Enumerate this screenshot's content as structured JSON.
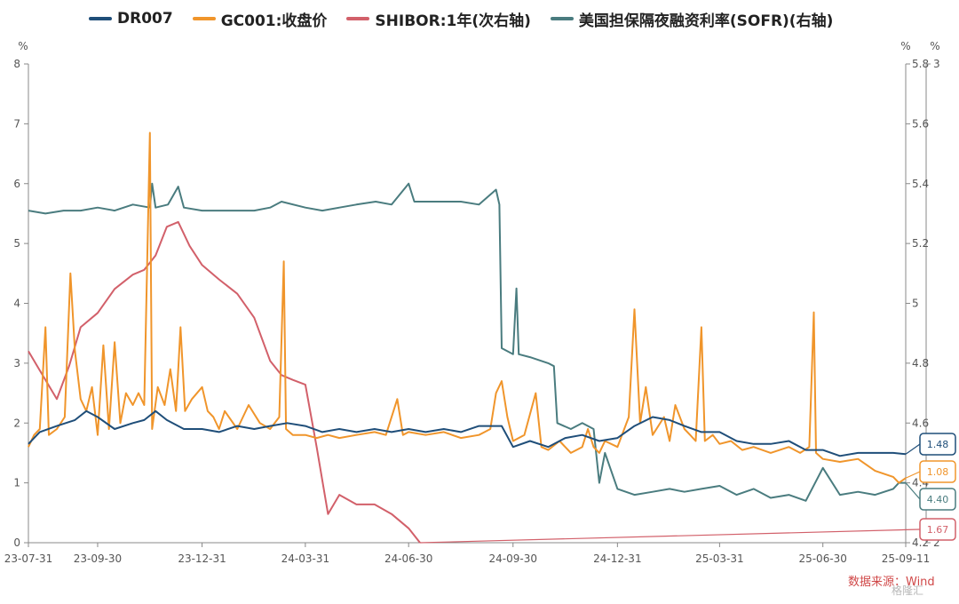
{
  "legend": {
    "items": [
      {
        "label": "DR007",
        "color": "#1f4e79"
      },
      {
        "label": "GC001:收盘价",
        "color": "#f0952b"
      },
      {
        "label": "SHIBOR:1年(次右轴)",
        "color": "#d2606a"
      },
      {
        "label": "美国担保隔夜融资利率(SOFR)(右轴)",
        "color": "#4a7c7f"
      }
    ]
  },
  "axis_units": {
    "left": "%",
    "right": "%",
    "right2": "%"
  },
  "source": "数据来源：Wind",
  "watermark": "格隆汇",
  "chart_data": {
    "type": "line",
    "x_ticks": [
      "23-07-31",
      "23-09-30",
      "23-12-31",
      "24-03-31",
      "24-06-30",
      "24-09-30",
      "24-12-31",
      "25-03-31",
      "25-06-30",
      "25-09-11"
    ],
    "y_left": {
      "min": 0,
      "max": 8,
      "ticks": [
        0,
        1,
        2,
        3,
        4,
        5,
        6,
        7,
        8
      ]
    },
    "y_right": {
      "min": 4.2,
      "max": 5.8,
      "ticks": [
        4.2,
        4.4,
        4.6,
        4.8,
        5,
        5.2,
        5.4,
        5.6,
        5.8
      ]
    },
    "y_right2": {
      "min": 2,
      "max": 3,
      "ticks": [
        2,
        3
      ]
    },
    "series": [
      {
        "name": "DR007",
        "axis": "left",
        "color": "#1f4e79",
        "points": [
          [
            "2023-07-31",
            1.65
          ],
          [
            "2023-08-10",
            1.85
          ],
          [
            "2023-08-25",
            1.95
          ],
          [
            "2023-09-10",
            2.05
          ],
          [
            "2023-09-20",
            2.2
          ],
          [
            "2023-09-30",
            2.1
          ],
          [
            "2023-10-15",
            1.9
          ],
          [
            "2023-10-31",
            2.0
          ],
          [
            "2023-11-10",
            2.05
          ],
          [
            "2023-11-20",
            2.2
          ],
          [
            "2023-11-30",
            2.05
          ],
          [
            "2023-12-15",
            1.9
          ],
          [
            "2023-12-31",
            1.9
          ],
          [
            "2024-01-15",
            1.85
          ],
          [
            "2024-01-31",
            1.95
          ],
          [
            "2024-02-15",
            1.9
          ],
          [
            "2024-02-29",
            1.95
          ],
          [
            "2024-03-15",
            2.0
          ],
          [
            "2024-03-31",
            1.95
          ],
          [
            "2024-04-15",
            1.85
          ],
          [
            "2024-04-30",
            1.9
          ],
          [
            "2024-05-15",
            1.85
          ],
          [
            "2024-05-31",
            1.9
          ],
          [
            "2024-06-15",
            1.85
          ],
          [
            "2024-06-30",
            1.9
          ],
          [
            "2024-07-15",
            1.85
          ],
          [
            "2024-07-31",
            1.9
          ],
          [
            "2024-08-15",
            1.85
          ],
          [
            "2024-08-31",
            1.95
          ],
          [
            "2024-09-20",
            1.95
          ],
          [
            "2024-09-30",
            1.6
          ],
          [
            "2024-10-15",
            1.7
          ],
          [
            "2024-10-31",
            1.6
          ],
          [
            "2024-11-15",
            1.75
          ],
          [
            "2024-11-30",
            1.8
          ],
          [
            "2024-12-15",
            1.7
          ],
          [
            "2024-12-31",
            1.75
          ],
          [
            "2025-01-15",
            1.95
          ],
          [
            "2025-01-31",
            2.1
          ],
          [
            "2025-02-15",
            2.05
          ],
          [
            "2025-02-28",
            1.95
          ],
          [
            "2025-03-15",
            1.85
          ],
          [
            "2025-03-31",
            1.85
          ],
          [
            "2025-04-15",
            1.7
          ],
          [
            "2025-04-30",
            1.65
          ],
          [
            "2025-05-15",
            1.65
          ],
          [
            "2025-05-31",
            1.7
          ],
          [
            "2025-06-15",
            1.55
          ],
          [
            "2025-06-30",
            1.55
          ],
          [
            "2025-07-15",
            1.45
          ],
          [
            "2025-07-31",
            1.5
          ],
          [
            "2025-08-15",
            1.5
          ],
          [
            "2025-08-31",
            1.5
          ],
          [
            "2025-09-11",
            1.48
          ]
        ]
      },
      {
        "name": "GC001:收盘价",
        "axis": "left",
        "color": "#f0952b",
        "points": [
          [
            "2023-07-31",
            1.6
          ],
          [
            "2023-08-05",
            1.8
          ],
          [
            "2023-08-10",
            1.9
          ],
          [
            "2023-08-15",
            3.6
          ],
          [
            "2023-08-18",
            1.8
          ],
          [
            "2023-08-25",
            1.9
          ],
          [
            "2023-09-01",
            2.1
          ],
          [
            "2023-09-06",
            4.5
          ],
          [
            "2023-09-10",
            3.2
          ],
          [
            "2023-09-15",
            2.4
          ],
          [
            "2023-09-20",
            2.2
          ],
          [
            "2023-09-25",
            2.6
          ],
          [
            "2023-09-30",
            1.8
          ],
          [
            "2023-10-05",
            3.3
          ],
          [
            "2023-10-10",
            1.9
          ],
          [
            "2023-10-15",
            3.35
          ],
          [
            "2023-10-20",
            2.0
          ],
          [
            "2023-10-25",
            2.5
          ],
          [
            "2023-10-31",
            2.3
          ],
          [
            "2023-11-05",
            2.5
          ],
          [
            "2023-11-10",
            2.3
          ],
          [
            "2023-11-15",
            6.85
          ],
          [
            "2023-11-17",
            1.9
          ],
          [
            "2023-11-22",
            2.6
          ],
          [
            "2023-11-28",
            2.3
          ],
          [
            "2023-12-03",
            2.9
          ],
          [
            "2023-12-08",
            2.2
          ],
          [
            "2023-12-12",
            3.6
          ],
          [
            "2023-12-16",
            2.2
          ],
          [
            "2023-12-22",
            2.4
          ],
          [
            "2023-12-31",
            2.6
          ],
          [
            "2024-01-05",
            2.2
          ],
          [
            "2024-01-10",
            2.1
          ],
          [
            "2024-01-15",
            1.9
          ],
          [
            "2024-01-20",
            2.2
          ],
          [
            "2024-01-31",
            1.9
          ],
          [
            "2024-02-10",
            2.3
          ],
          [
            "2024-02-20",
            2.0
          ],
          [
            "2024-02-29",
            1.9
          ],
          [
            "2024-03-08",
            2.1
          ],
          [
            "2024-03-12",
            4.7
          ],
          [
            "2024-03-14",
            1.9
          ],
          [
            "2024-03-20",
            1.8
          ],
          [
            "2024-03-31",
            1.8
          ],
          [
            "2024-04-10",
            1.75
          ],
          [
            "2024-04-20",
            1.8
          ],
          [
            "2024-04-30",
            1.75
          ],
          [
            "2024-05-15",
            1.8
          ],
          [
            "2024-05-31",
            1.85
          ],
          [
            "2024-06-10",
            1.8
          ],
          [
            "2024-06-20",
            2.4
          ],
          [
            "2024-06-25",
            1.8
          ],
          [
            "2024-06-30",
            1.85
          ],
          [
            "2024-07-15",
            1.8
          ],
          [
            "2024-07-31",
            1.85
          ],
          [
            "2024-08-15",
            1.75
          ],
          [
            "2024-08-31",
            1.8
          ],
          [
            "2024-09-05",
            1.85
          ],
          [
            "2024-09-10",
            1.9
          ],
          [
            "2024-09-15",
            2.5
          ],
          [
            "2024-09-20",
            2.7
          ],
          [
            "2024-09-25",
            2.1
          ],
          [
            "2024-09-30",
            1.7
          ],
          [
            "2024-10-10",
            1.8
          ],
          [
            "2024-10-20",
            2.5
          ],
          [
            "2024-10-25",
            1.6
          ],
          [
            "2024-10-31",
            1.55
          ],
          [
            "2024-11-10",
            1.7
          ],
          [
            "2024-11-20",
            1.5
          ],
          [
            "2024-11-30",
            1.6
          ],
          [
            "2024-12-05",
            1.9
          ],
          [
            "2024-12-10",
            1.6
          ],
          [
            "2024-12-15",
            1.5
          ],
          [
            "2024-12-20",
            1.7
          ],
          [
            "2024-12-31",
            1.6
          ],
          [
            "2025-01-10",
            2.1
          ],
          [
            "2025-01-15",
            3.9
          ],
          [
            "2025-01-20",
            2.0
          ],
          [
            "2025-01-25",
            2.6
          ],
          [
            "2025-01-31",
            1.8
          ],
          [
            "2025-02-10",
            2.1
          ],
          [
            "2025-02-15",
            1.7
          ],
          [
            "2025-02-20",
            2.3
          ],
          [
            "2025-02-28",
            1.9
          ],
          [
            "2025-03-05",
            1.8
          ],
          [
            "2025-03-10",
            1.7
          ],
          [
            "2025-03-15",
            3.6
          ],
          [
            "2025-03-18",
            1.7
          ],
          [
            "2025-03-25",
            1.8
          ],
          [
            "2025-03-31",
            1.65
          ],
          [
            "2025-04-10",
            1.7
          ],
          [
            "2025-04-20",
            1.55
          ],
          [
            "2025-04-30",
            1.6
          ],
          [
            "2025-05-15",
            1.5
          ],
          [
            "2025-05-31",
            1.6
          ],
          [
            "2025-06-10",
            1.5
          ],
          [
            "2025-06-18",
            1.6
          ],
          [
            "2025-06-22",
            3.85
          ],
          [
            "2025-06-24",
            1.5
          ],
          [
            "2025-06-30",
            1.4
          ],
          [
            "2025-07-15",
            1.35
          ],
          [
            "2025-07-31",
            1.4
          ],
          [
            "2025-08-15",
            1.2
          ],
          [
            "2025-08-31",
            1.1
          ],
          [
            "2025-09-05",
            1.0
          ],
          [
            "2025-09-11",
            1.08
          ]
        ]
      },
      {
        "name": "SHIBOR:1年(次右轴)",
        "axis": "right2",
        "color": "#d2606a",
        "points": [
          [
            "2023-07-31",
            2.4
          ],
          [
            "2023-08-10",
            2.36
          ],
          [
            "2023-08-25",
            2.3
          ],
          [
            "2023-09-05",
            2.37
          ],
          [
            "2023-09-15",
            2.45
          ],
          [
            "2023-09-30",
            2.48
          ],
          [
            "2023-10-15",
            2.53
          ],
          [
            "2023-10-31",
            2.56
          ],
          [
            "2023-11-10",
            2.57
          ],
          [
            "2023-11-20",
            2.6
          ],
          [
            "2023-11-30",
            2.66
          ],
          [
            "2023-12-10",
            2.67
          ],
          [
            "2023-12-20",
            2.62
          ],
          [
            "2023-12-31",
            2.58
          ],
          [
            "2024-01-15",
            2.55
          ],
          [
            "2024-01-31",
            2.52
          ],
          [
            "2024-02-15",
            2.47
          ],
          [
            "2024-02-29",
            2.38
          ],
          [
            "2024-03-10",
            2.35
          ],
          [
            "2024-03-20",
            2.34
          ],
          [
            "2024-03-31",
            2.33
          ],
          [
            "2024-04-10",
            2.2
          ],
          [
            "2024-04-20",
            2.06
          ],
          [
            "2024-04-30",
            2.1
          ],
          [
            "2024-05-15",
            2.08
          ],
          [
            "2024-05-31",
            2.08
          ],
          [
            "2024-06-15",
            2.06
          ],
          [
            "2024-06-30",
            2.03
          ],
          [
            "2024-07-10",
            2.0
          ]
        ]
      },
      {
        "name": "美国担保隔夜融资利率(SOFR)(右轴)",
        "axis": "right",
        "color": "#4a7c7f",
        "points": [
          [
            "2023-07-31",
            5.31
          ],
          [
            "2023-08-15",
            5.3
          ],
          [
            "2023-08-31",
            5.31
          ],
          [
            "2023-09-15",
            5.31
          ],
          [
            "2023-09-30",
            5.32
          ],
          [
            "2023-10-15",
            5.31
          ],
          [
            "2023-10-31",
            5.33
          ],
          [
            "2023-11-15",
            5.32
          ],
          [
            "2023-11-17",
            5.4
          ],
          [
            "2023-11-20",
            5.32
          ],
          [
            "2023-12-01",
            5.33
          ],
          [
            "2023-12-10",
            5.39
          ],
          [
            "2023-12-15",
            5.32
          ],
          [
            "2023-12-31",
            5.31
          ],
          [
            "2024-01-15",
            5.31
          ],
          [
            "2024-01-31",
            5.31
          ],
          [
            "2024-02-15",
            5.31
          ],
          [
            "2024-02-29",
            5.32
          ],
          [
            "2024-03-10",
            5.34
          ],
          [
            "2024-03-31",
            5.32
          ],
          [
            "2024-04-15",
            5.31
          ],
          [
            "2024-04-30",
            5.32
          ],
          [
            "2024-05-15",
            5.33
          ],
          [
            "2024-06-01",
            5.34
          ],
          [
            "2024-06-15",
            5.33
          ],
          [
            "2024-06-30",
            5.4
          ],
          [
            "2024-07-05",
            5.34
          ],
          [
            "2024-07-31",
            5.34
          ],
          [
            "2024-08-15",
            5.34
          ],
          [
            "2024-08-31",
            5.33
          ],
          [
            "2024-09-15",
            5.38
          ],
          [
            "2024-09-18",
            5.33
          ],
          [
            "2024-09-20",
            4.85
          ],
          [
            "2024-09-30",
            4.83
          ],
          [
            "2024-10-03",
            5.05
          ],
          [
            "2024-10-05",
            4.83
          ],
          [
            "2024-10-15",
            4.82
          ],
          [
            "2024-10-31",
            4.8
          ],
          [
            "2024-11-05",
            4.79
          ],
          [
            "2024-11-08",
            4.6
          ],
          [
            "2024-11-20",
            4.58
          ],
          [
            "2024-11-30",
            4.6
          ],
          [
            "2024-12-10",
            4.58
          ],
          [
            "2024-12-15",
            4.4
          ],
          [
            "2024-12-20",
            4.5
          ],
          [
            "2024-12-31",
            4.38
          ],
          [
            "2025-01-15",
            4.36
          ],
          [
            "2025-01-31",
            4.37
          ],
          [
            "2025-02-15",
            4.38
          ],
          [
            "2025-02-28",
            4.37
          ],
          [
            "2025-03-15",
            4.38
          ],
          [
            "2025-03-31",
            4.39
          ],
          [
            "2025-04-15",
            4.36
          ],
          [
            "2025-04-30",
            4.38
          ],
          [
            "2025-05-15",
            4.35
          ],
          [
            "2025-05-31",
            4.36
          ],
          [
            "2025-06-15",
            4.34
          ],
          [
            "2025-06-30",
            4.45
          ],
          [
            "2025-07-15",
            4.36
          ],
          [
            "2025-07-31",
            4.37
          ],
          [
            "2025-08-15",
            4.36
          ],
          [
            "2025-08-31",
            4.38
          ],
          [
            "2025-09-05",
            4.4
          ],
          [
            "2025-09-11",
            4.4
          ]
        ]
      }
    ],
    "end_labels": [
      {
        "series": "DR007",
        "text": "1.48",
        "color": "#1f4e79"
      },
      {
        "series": "GC001:收盘价",
        "text": "1.08",
        "color": "#f0952b"
      },
      {
        "series": "美国担保隔夜融资利率(SOFR)(右轴)",
        "text": "4.40",
        "color": "#4a7c7f"
      },
      {
        "series": "SHIBOR:1年(次右轴)",
        "text": "1.67",
        "color": "#d2606a"
      }
    ]
  }
}
